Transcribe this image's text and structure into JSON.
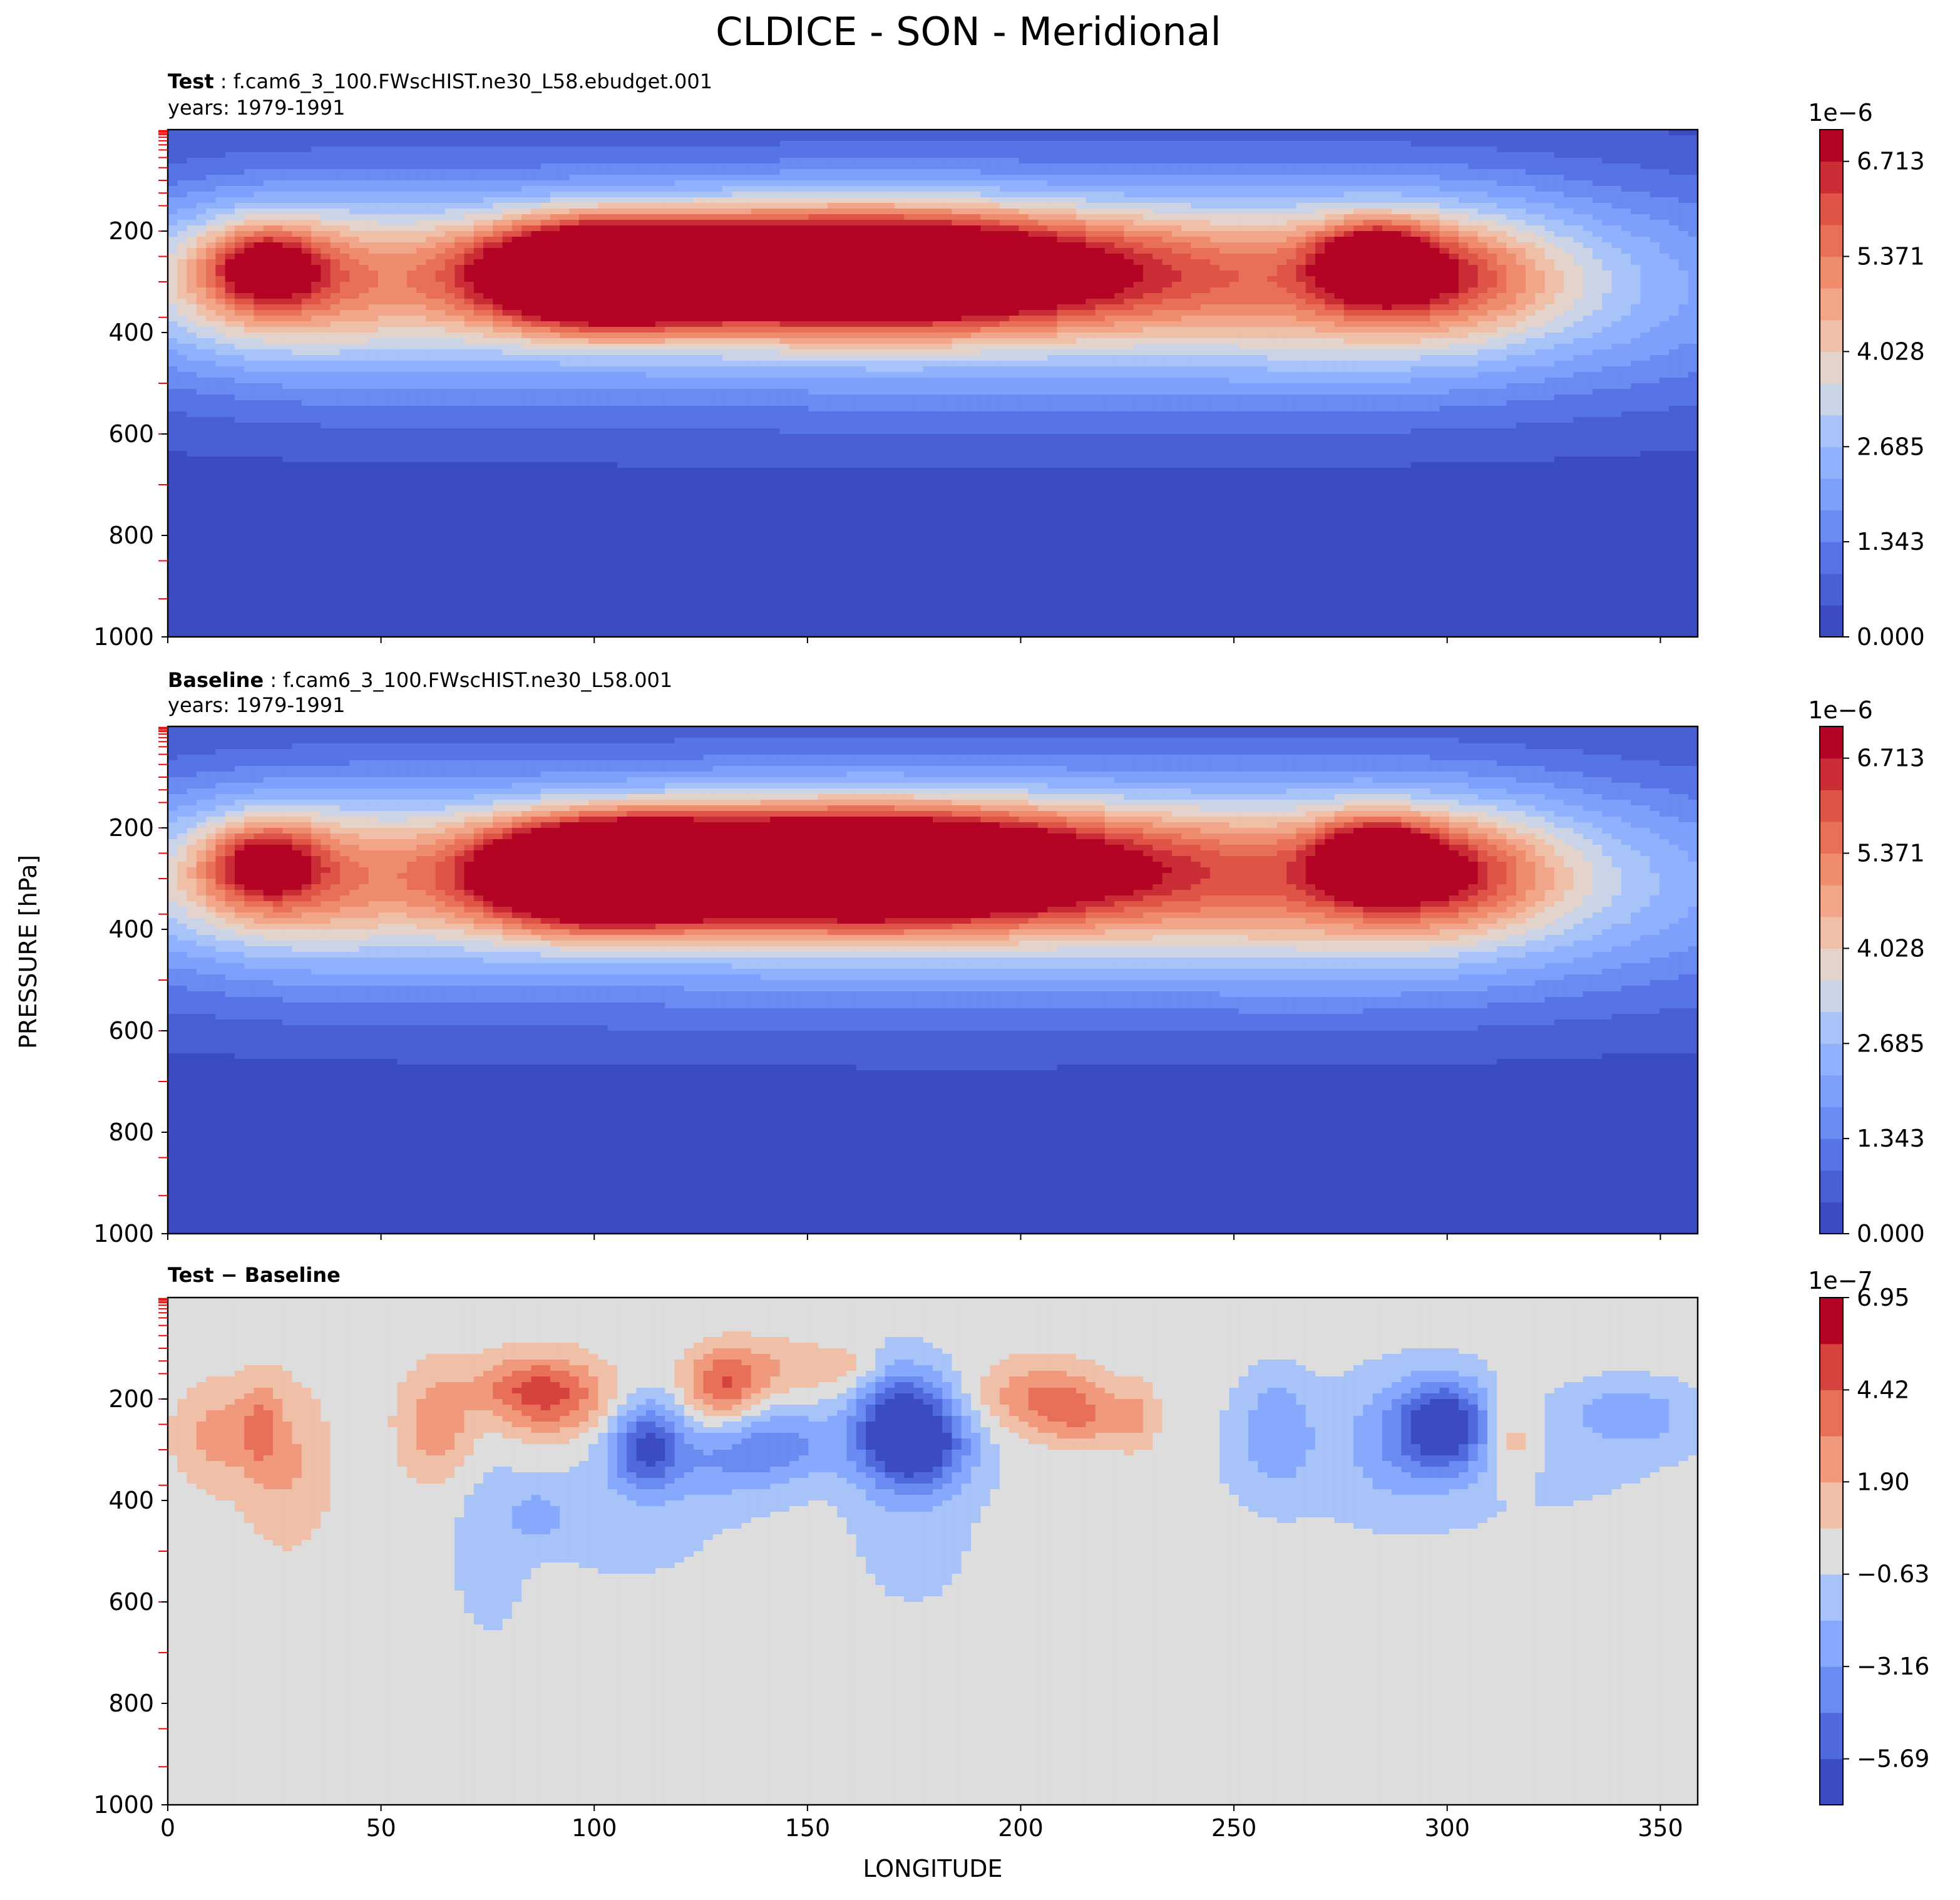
{
  "figure_title": "CLDICE - SON - Meridional",
  "ylabel": "PRESSURE [hPa]",
  "xlabel": "LONGITUDE",
  "chart_data": [
    {
      "type": "heatmap",
      "panel": "test",
      "label_bold": "Test",
      "label_rest": " : f.cam6_3_100.FWscHIST.ne30_L58.ebudget.001",
      "years": "years: 1979-1991",
      "xlim": [
        0,
        358.75
      ],
      "ylim": [
        1000,
        0
      ],
      "y_inverted": true,
      "xticks": [
        0,
        50,
        100,
        150,
        200,
        250,
        300,
        350
      ],
      "xtick_labels_shown": false,
      "yticks": [
        200,
        400,
        600,
        800,
        1000
      ],
      "colormap": "coolwarm",
      "colorbar_exponent": "1e−6",
      "colorbar_ticks": [
        "0.000",
        "1.343",
        "2.685",
        "4.028",
        "5.371",
        "6.713"
      ],
      "levels": [
        0.0,
        0.4476,
        0.8952,
        1.343,
        1.79,
        2.238,
        2.685,
        3.133,
        3.581,
        4.028,
        4.476,
        4.923,
        5.371,
        5.819,
        6.266,
        6.713,
        7.161
      ],
      "blobs": [
        {
          "lon": 160,
          "p": 275,
          "slon": 46,
          "sp": 78,
          "amp": 7.4
        },
        {
          "lon": 98,
          "p": 285,
          "slon": 17,
          "sp": 68,
          "amp": 5.9
        },
        {
          "lon": 117,
          "p": 280,
          "slon": 13,
          "sp": 58,
          "amp": 1.7
        },
        {
          "lon": 283,
          "p": 260,
          "slon": 9,
          "sp": 52,
          "amp": 4.0
        },
        {
          "lon": 298,
          "p": 285,
          "slon": 17,
          "sp": 70,
          "amp": 2.0
        },
        {
          "lon": 23,
          "p": 270,
          "slon": 9,
          "sp": 52,
          "amp": 3.0
        },
        {
          "lon": 22,
          "p": 290,
          "slon": 19,
          "sp": 95,
          "amp": 1.9
        },
        {
          "lon": 175,
          "p": 300,
          "slon": 95,
          "sp": 140,
          "amp": 2.6
        },
        {
          "lon": 290,
          "p": 300,
          "slon": 40,
          "sp": 130,
          "amp": 2.3
        },
        {
          "lon": 40,
          "p": 300,
          "slon": 35,
          "sp": 130,
          "amp": 1.8
        },
        {
          "lon": 180,
          "p": 330,
          "slon": 300,
          "sp": 200,
          "amp": 1.5
        }
      ]
    },
    {
      "type": "heatmap",
      "panel": "baseline",
      "label_bold": "Baseline",
      "label_rest": " : f.cam6_3_100.FWscHIST.ne30_L58.001",
      "years": "years: 1979-1991",
      "xlim": [
        0,
        358.75
      ],
      "ylim": [
        1000,
        0
      ],
      "y_inverted": true,
      "xticks": [
        0,
        50,
        100,
        150,
        200,
        250,
        300,
        350
      ],
      "xtick_labels_shown": false,
      "yticks": [
        200,
        400,
        600,
        800,
        1000
      ],
      "colormap": "coolwarm",
      "colorbar_exponent": "1e−6",
      "colorbar_ticks": [
        "0.000",
        "1.343",
        "2.685",
        "4.028",
        "5.371",
        "6.713"
      ],
      "levels": [
        0.0,
        0.4476,
        0.8952,
        1.343,
        1.79,
        2.238,
        2.685,
        3.133,
        3.581,
        4.028,
        4.476,
        4.923,
        5.371,
        5.819,
        6.266,
        6.713,
        7.161
      ],
      "blobs": [
        {
          "lon": 160,
          "p": 275,
          "slon": 46,
          "sp": 78,
          "amp": 7.7
        },
        {
          "lon": 98,
          "p": 290,
          "slon": 17,
          "sp": 68,
          "amp": 6.2
        },
        {
          "lon": 117,
          "p": 280,
          "slon": 13,
          "sp": 58,
          "amp": 1.8
        },
        {
          "lon": 283,
          "p": 260,
          "slon": 9,
          "sp": 52,
          "amp": 3.8
        },
        {
          "lon": 298,
          "p": 285,
          "slon": 17,
          "sp": 70,
          "amp": 2.2
        },
        {
          "lon": 23,
          "p": 270,
          "slon": 9,
          "sp": 52,
          "amp": 2.8
        },
        {
          "lon": 22,
          "p": 290,
          "slon": 19,
          "sp": 95,
          "amp": 1.7
        },
        {
          "lon": 175,
          "p": 300,
          "slon": 95,
          "sp": 140,
          "amp": 2.7
        },
        {
          "lon": 290,
          "p": 300,
          "slon": 40,
          "sp": 130,
          "amp": 2.4
        },
        {
          "lon": 40,
          "p": 300,
          "slon": 35,
          "sp": 130,
          "amp": 1.7
        },
        {
          "lon": 180,
          "p": 330,
          "slon": 300,
          "sp": 200,
          "amp": 1.6
        }
      ]
    },
    {
      "type": "heatmap",
      "panel": "difference",
      "label_bold": "Test − Baseline",
      "xlim": [
        0,
        358.75
      ],
      "ylim": [
        1000,
        0
      ],
      "y_inverted": true,
      "xticks": [
        0,
        50,
        100,
        150,
        200,
        250,
        300,
        350
      ],
      "xtick_labels_shown": true,
      "yticks": [
        200,
        400,
        600,
        800,
        1000
      ],
      "colormap": "coolwarm",
      "colorbar_exponent": "1e−7",
      "colorbar_ticks": [
        "−5.69",
        "−3.16",
        "−0.63",
        "1.90",
        "4.42",
        "6.95"
      ],
      "levels": [
        -6.95,
        -5.69,
        -4.42,
        -3.16,
        -1.9,
        -0.63,
        0.63,
        1.9,
        3.16,
        4.42,
        5.69,
        6.95
      ],
      "blobs": [
        {
          "lon": 12,
          "p": 270,
          "slon": 7,
          "sp": 70,
          "amp": 2.4
        },
        {
          "lon": 22,
          "p": 250,
          "slon": 3,
          "sp": 60,
          "amp": 2.2
        },
        {
          "lon": 28,
          "p": 330,
          "slon": 7,
          "sp": 110,
          "amp": 2.0
        },
        {
          "lon": 63,
          "p": 250,
          "slon": 6,
          "sp": 75,
          "amp": 2.8
        },
        {
          "lon": 90,
          "p": 200,
          "slon": 10,
          "sp": 55,
          "amp": 4.2
        },
        {
          "lon": 82,
          "p": 170,
          "slon": 9,
          "sp": 40,
          "amp": 1.8
        },
        {
          "lon": 130,
          "p": 180,
          "slon": 6,
          "sp": 50,
          "amp": 4.0
        },
        {
          "lon": 140,
          "p": 140,
          "slon": 10,
          "sp": 40,
          "amp": 1.9
        },
        {
          "lon": 160,
          "p": 140,
          "slon": 6,
          "sp": 30,
          "amp": 1.6
        },
        {
          "lon": 205,
          "p": 200,
          "slon": 10,
          "sp": 50,
          "amp": 3.5
        },
        {
          "lon": 215,
          "p": 240,
          "slon": 6,
          "sp": 40,
          "amp": 2.0
        },
        {
          "lon": 227,
          "p": 240,
          "slon": 4,
          "sp": 45,
          "amp": 2.3
        },
        {
          "lon": 315,
          "p": 280,
          "slon": 4,
          "sp": 60,
          "amp": 2.2
        },
        {
          "lon": 112,
          "p": 290,
          "slon": 6,
          "sp": 60,
          "amp": -5.2
        },
        {
          "lon": 172,
          "p": 250,
          "slon": 8,
          "sp": 80,
          "amp": -6.5
        },
        {
          "lon": 178,
          "p": 290,
          "slon": 9,
          "sp": 60,
          "amp": -3.5
        },
        {
          "lon": 145,
          "p": 290,
          "slon": 10,
          "sp": 50,
          "amp": -2.8
        },
        {
          "lon": 130,
          "p": 320,
          "slon": 12,
          "sp": 60,
          "amp": -2.2
        },
        {
          "lon": 300,
          "p": 250,
          "slon": 7,
          "sp": 60,
          "amp": -5.8
        },
        {
          "lon": 290,
          "p": 270,
          "slon": 10,
          "sp": 90,
          "amp": -2.3
        },
        {
          "lon": 343,
          "p": 230,
          "slon": 10,
          "sp": 45,
          "amp": -2.6
        },
        {
          "lon": 260,
          "p": 260,
          "slon": 6,
          "sp": 80,
          "amp": -2.6
        },
        {
          "lon": 87,
          "p": 430,
          "slon": 5,
          "sp": 40,
          "amp": -1.9
        },
        {
          "lon": 75,
          "p": 500,
          "slon": 6,
          "sp": 130,
          "amp": -1.2
        },
        {
          "lon": 108,
          "p": 420,
          "slon": 20,
          "sp": 130,
          "amp": -1.0
        },
        {
          "lon": 175,
          "p": 450,
          "slon": 12,
          "sp": 140,
          "amp": -1.1
        },
        {
          "lon": 300,
          "p": 330,
          "slon": 45,
          "sp": 110,
          "amp": -1.0
        }
      ]
    }
  ]
}
